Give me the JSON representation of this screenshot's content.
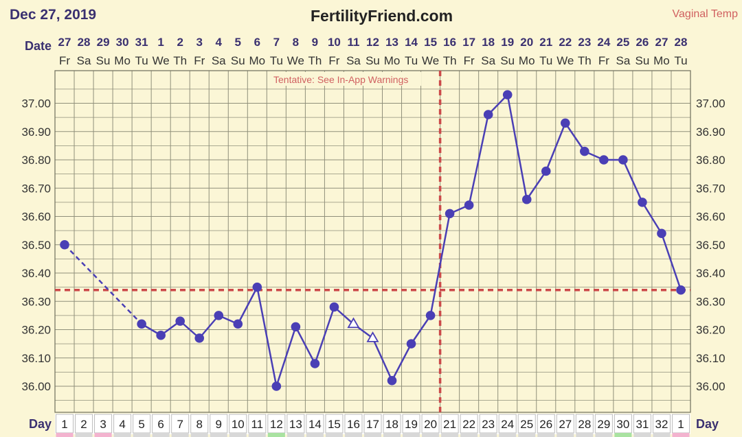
{
  "header": {
    "date": "Dec 27, 2019",
    "site": "FertilityFriend.com",
    "temp_method": "Vaginal Temp"
  },
  "labels": {
    "date_row": "Date",
    "day_row": "Day",
    "warning": "Tentative: See In-App Warnings"
  },
  "colors": {
    "background": "#fbf6d6",
    "grid": "#8f8f7a",
    "line": "#4a3fb5",
    "marker": "#4a3fb5",
    "coverline": "#cc4a4a",
    "text": "#3a3070"
  },
  "chart_data": {
    "type": "line",
    "title": "",
    "ylim": [
      35.92,
      37.12
    ],
    "yticks": [
      "37.00",
      "36.90",
      "36.80",
      "36.70",
      "36.60",
      "36.50",
      "36.40",
      "36.30",
      "36.20",
      "36.10",
      "36.00"
    ],
    "dates": [
      "27",
      "28",
      "29",
      "30",
      "31",
      "1",
      "2",
      "3",
      "4",
      "5",
      "6",
      "7",
      "8",
      "9",
      "10",
      "11",
      "12",
      "13",
      "14",
      "15",
      "16",
      "17",
      "18",
      "19",
      "20",
      "21",
      "22",
      "23",
      "24",
      "25",
      "26",
      "27",
      "28"
    ],
    "weekdays": [
      "Fr",
      "Sa",
      "Su",
      "Mo",
      "Tu",
      "We",
      "Th",
      "Fr",
      "Sa",
      "Su",
      "Mo",
      "Tu",
      "We",
      "Th",
      "Fr",
      "Sa",
      "Su",
      "Mo",
      "Tu",
      "We",
      "Th",
      "Fr",
      "Sa",
      "Su",
      "Mo",
      "Tu",
      "We",
      "Th",
      "Fr",
      "Sa",
      "Su",
      "Mo",
      "Tu"
    ],
    "cycle_days": [
      "1",
      "2",
      "3",
      "4",
      "5",
      "6",
      "7",
      "8",
      "9",
      "10",
      "11",
      "12",
      "13",
      "14",
      "15",
      "16",
      "17",
      "18",
      "19",
      "20",
      "21",
      "22",
      "23",
      "24",
      "25",
      "26",
      "27",
      "28",
      "29",
      "30",
      "31",
      "32",
      "1"
    ],
    "day_highlights": {
      "pink": [
        0,
        2,
        32
      ],
      "green": [
        11,
        29
      ]
    },
    "series": [
      {
        "values": [
          36.5,
          null,
          null,
          null,
          36.22,
          36.18,
          36.23,
          36.17,
          36.25,
          36.22,
          36.35,
          36.0,
          36.21,
          36.08,
          36.28,
          36.22,
          36.17,
          36.02,
          36.15,
          36.25,
          36.61,
          36.64,
          36.96,
          37.03,
          36.66,
          36.76,
          36.93,
          36.83,
          36.8,
          36.8,
          36.65,
          36.54,
          36.34
        ],
        "open_markers": [
          15,
          16
        ],
        "dashed_segments": [
          [
            0,
            4
          ]
        ]
      }
    ],
    "coverline": 36.34,
    "ovulation_day_index": 19
  }
}
